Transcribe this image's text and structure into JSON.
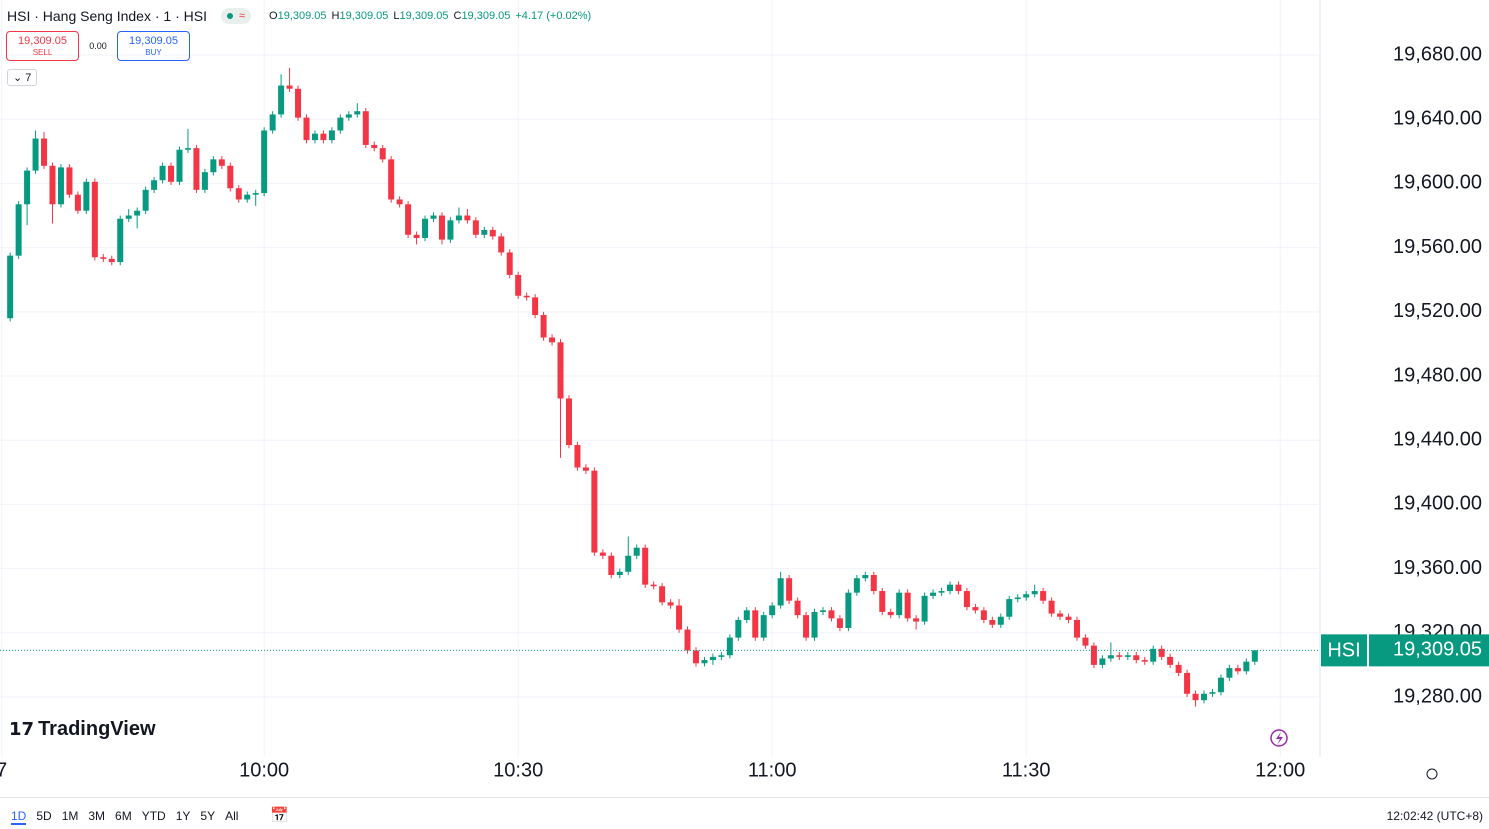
{
  "header": {
    "symbol": "HSI · Hang Seng Index · 1 · HSI",
    "ohlc": [
      {
        "label": "O",
        "value": "19,309.05"
      },
      {
        "label": "H",
        "value": "19,309.05"
      },
      {
        "label": "L",
        "value": "19,309.05"
      },
      {
        "label": "C",
        "value": "19,309.05"
      }
    ],
    "change": "+4.17 (+0.02%)",
    "trade": {
      "sell_price": "19,309.05",
      "sell_label": "SELL",
      "spread": "0.00",
      "buy_price": "19,309.05",
      "buy_label": "BUY"
    },
    "indicators_toggle": "7"
  },
  "watermark": "TradingView",
  "chart_data": {
    "type": "candlestick",
    "series_name": "HSI",
    "up_color": "#089981",
    "down_color": "#f23645",
    "x": [
      570,
      571,
      572,
      573,
      574,
      575,
      576,
      577,
      578,
      579,
      580,
      581,
      582,
      583,
      584,
      585,
      586,
      587,
      588,
      589,
      590,
      591,
      592,
      593,
      594,
      595,
      596,
      597,
      598,
      599,
      600,
      601,
      602,
      603,
      604,
      605,
      606,
      607,
      608,
      609,
      610,
      611,
      612,
      613,
      614,
      615,
      616,
      617,
      618,
      619,
      620,
      621,
      622,
      623,
      624,
      625,
      626,
      627,
      628,
      629,
      630,
      631,
      632,
      633,
      634,
      635,
      636,
      637,
      638,
      639,
      640,
      641,
      642,
      643,
      644,
      645,
      646,
      647,
      648,
      649,
      650,
      651,
      652,
      653,
      654,
      655,
      656,
      657,
      658,
      659,
      660,
      661,
      662,
      663,
      664,
      665,
      666,
      667,
      668,
      669,
      670,
      671,
      672,
      673,
      674,
      675,
      676,
      677,
      678,
      679,
      680,
      681,
      682,
      683,
      684,
      685,
      686,
      687,
      688,
      689,
      690,
      691,
      692,
      693,
      694,
      695,
      696,
      697,
      698,
      699,
      700,
      701,
      702,
      703,
      704,
      705,
      706,
      707,
      708,
      709,
      710,
      711,
      712,
      713,
      714,
      715,
      716,
      717
    ],
    "open": [
      19516,
      19555,
      19587,
      19608,
      19628,
      19611,
      19587,
      19610,
      19593,
      19583,
      19601,
      19554,
      19553,
      19551,
      19578,
      19580,
      19583,
      19596,
      19602,
      19611,
      19601,
      19621,
      19622,
      19596,
      19607,
      19615,
      19611,
      19597,
      19590,
      19593,
      19594,
      19633,
      19643,
      19661,
      19659,
      19641,
      19627,
      19631,
      19627,
      19633,
      19641,
      19643,
      19645,
      19624,
      19622,
      19615,
      19590,
      19587,
      19568,
      19566,
      19578,
      19580,
      19565,
      19577,
      19580,
      19577,
      19568,
      19571,
      19567,
      19557,
      19543,
      19530,
      19529,
      19518,
      19504,
      19501,
      19466,
      19437,
      19423,
      19421,
      19370,
      19368,
      19356,
      19358,
      19368,
      19373,
      19350,
      19349,
      19339,
      19337,
      19322,
      19309,
      19301,
      19303,
      19305,
      19306,
      19317,
      19328,
      19334,
      19317,
      19331,
      19337,
      19354,
      19340,
      19331,
      19317,
      19333,
      19334,
      19329,
      19323,
      19345,
      19354,
      19356,
      19346,
      19333,
      19331,
      19345,
      19329,
      19327,
      19343,
      19345,
      19346,
      19350,
      19346,
      19336,
      19334,
      19328,
      19325,
      19330,
      19341,
      19342,
      19344,
      19346,
      19340,
      19332,
      19330,
      19328,
      19317,
      19312,
      19300,
      19304,
      19306,
      19305,
      19306,
      19303,
      19302,
      19310,
      19305,
      19300,
      19295,
      19282,
      19278,
      19282,
      19283,
      19292,
      19298,
      19296,
      19302
    ],
    "high": [
      19557,
      19589,
      19610,
      19633,
      19632,
      19613,
      19612,
      19612,
      19595,
      19603,
      19603,
      19556,
      19555,
      19580,
      19584,
      19585,
      19598,
      19604,
      19613,
      19613,
      19623,
      19634,
      19624,
      19609,
      19617,
      19617,
      19613,
      19599,
      19595,
      19596,
      19635,
      19645,
      19668,
      19672,
      19661,
      19643,
      19633,
      19633,
      19635,
      19643,
      19645,
      19650,
      19647,
      19626,
      19624,
      19617,
      19592,
      19589,
      19570,
      19580,
      19582,
      19582,
      19579,
      19585,
      19584,
      19579,
      19573,
      19573,
      19569,
      19559,
      19545,
      19532,
      19531,
      19520,
      19506,
      19503,
      19468,
      19439,
      19425,
      19423,
      19372,
      19370,
      19360,
      19380,
      19375,
      19375,
      19352,
      19351,
      19341,
      19341,
      19324,
      19311,
      19305,
      19307,
      19308,
      19319,
      19330,
      19336,
      19336,
      19333,
      19339,
      19358,
      19356,
      19342,
      19333,
      19335,
      19336,
      19336,
      19331,
      19347,
      19356,
      19358,
      19358,
      19348,
      19335,
      19347,
      19347,
      19331,
      19345,
      19347,
      19348,
      19352,
      19352,
      19348,
      19338,
      19336,
      19330,
      19332,
      19343,
      19344,
      19346,
      19350,
      19348,
      19342,
      19334,
      19332,
      19330,
      19319,
      19314,
      19306,
      19314,
      19308,
      19308,
      19308,
      19305,
      19312,
      19312,
      19307,
      19302,
      19297,
      19284,
      19284,
      19285,
      19294,
      19300,
      19300,
      19304,
      19309.05
    ],
    "low": [
      19514,
      19553,
      19574,
      19606,
      19609,
      19575,
      19585,
      19591,
      19581,
      19581,
      19552,
      19551,
      19549,
      19549,
      19576,
      19572,
      19581,
      19594,
      19600,
      19599,
      19599,
      19619,
      19594,
      19594,
      19605,
      19609,
      19595,
      19588,
      19588,
      19586,
      19592,
      19631,
      19641,
      19657,
      19639,
      19625,
      19625,
      19625,
      19625,
      19631,
      19639,
      19641,
      19622,
      19620,
      19613,
      19588,
      19585,
      19566,
      19562,
      19564,
      19576,
      19562,
      19563,
      19575,
      19575,
      19566,
      19566,
      19565,
      19555,
      19541,
      19528,
      19527,
      19516,
      19502,
      19499,
      19429,
      19435,
      19421,
      19419,
      19368,
      19366,
      19354,
      19354,
      19356,
      19366,
      19348,
      19347,
      19337,
      19335,
      19320,
      19307,
      19299,
      19299,
      19300,
      19303,
      19304,
      19315,
      19326,
      19315,
      19315,
      19329,
      19335,
      19338,
      19329,
      19315,
      19315,
      19331,
      19327,
      19321,
      19321,
      19343,
      19352,
      19344,
      19331,
      19329,
      19329,
      19327,
      19322,
      19325,
      19341,
      19343,
      19344,
      19344,
      19334,
      19332,
      19326,
      19323,
      19323,
      19328,
      19339,
      19340,
      19342,
      19338,
      19330,
      19328,
      19326,
      19315,
      19310,
      19298,
      19298,
      19302,
      19303,
      19303,
      19301,
      19300,
      19300,
      19303,
      19298,
      19293,
      19280,
      19274,
      19276,
      19280,
      19281,
      19290,
      19294,
      19294,
      19300
    ],
    "close": [
      19555,
      19587,
      19608,
      19628,
      19611,
      19587,
      19610,
      19593,
      19583,
      19601,
      19554,
      19553,
      19551,
      19578,
      19580,
      19583,
      19596,
      19602,
      19611,
      19601,
      19621,
      19622,
      19596,
      19607,
      19615,
      19611,
      19597,
      19590,
      19593,
      19594,
      19633,
      19643,
      19661,
      19659,
      19641,
      19627,
      19631,
      19627,
      19633,
      19641,
      19643,
      19645,
      19624,
      19622,
      19615,
      19590,
      19587,
      19568,
      19566,
      19578,
      19580,
      19565,
      19577,
      19580,
      19577,
      19568,
      19571,
      19567,
      19557,
      19543,
      19530,
      19529,
      19518,
      19504,
      19501,
      19466,
      19437,
      19423,
      19421,
      19370,
      19368,
      19356,
      19358,
      19368,
      19373,
      19350,
      19349,
      19339,
      19337,
      19322,
      19309,
      19301,
      19303,
      19305,
      19306,
      19317,
      19328,
      19334,
      19317,
      19331,
      19337,
      19354,
      19340,
      19331,
      19317,
      19333,
      19334,
      19329,
      19323,
      19345,
      19354,
      19356,
      19346,
      19333,
      19331,
      19345,
      19329,
      19327,
      19343,
      19345,
      19346,
      19350,
      19346,
      19336,
      19334,
      19328,
      19325,
      19330,
      19341,
      19342,
      19344,
      19346,
      19340,
      19332,
      19330,
      19328,
      19317,
      19312,
      19300,
      19304,
      19306,
      19305,
      19306,
      19303,
      19302,
      19310,
      19305,
      19300,
      19295,
      19282,
      19278,
      19282,
      19283,
      19292,
      19298,
      19296,
      19302,
      19309.05
    ],
    "xlim": [
      568.8,
      724.7
    ],
    "xticks": [
      {
        "value": 569,
        "label": "7"
      },
      {
        "value": 600,
        "label": "10:00"
      },
      {
        "value": 630,
        "label": "10:30"
      },
      {
        "value": 660,
        "label": "11:00"
      },
      {
        "value": 690,
        "label": "11:30"
      },
      {
        "value": 720,
        "label": "12:00"
      }
    ],
    "ylim": [
      19242.6,
      19714.3
    ],
    "yticks": [
      {
        "value": 19280,
        "label": "19,280.00"
      },
      {
        "value": 19320,
        "label": "19,320.00"
      },
      {
        "value": 19360,
        "label": "19,360.00"
      },
      {
        "value": 19400,
        "label": "19,400.00"
      },
      {
        "value": 19440,
        "label": "19,440.00"
      },
      {
        "value": 19480,
        "label": "19,480.00"
      },
      {
        "value": 19520,
        "label": "19,520.00"
      },
      {
        "value": 19560,
        "label": "19,560.00"
      },
      {
        "value": 19600,
        "label": "19,600.00"
      },
      {
        "value": 19640,
        "label": "19,640.00"
      },
      {
        "value": 19680,
        "label": "19,680.00"
      }
    ],
    "grid": true,
    "last_price": {
      "value": 19309.05,
      "label": "19,309.05"
    }
  },
  "toolbar": {
    "ranges": [
      "1D",
      "5D",
      "1M",
      "3M",
      "6M",
      "YTD",
      "1Y",
      "5Y",
      "All"
    ],
    "clock": "12:02:42 (UTC+8)"
  }
}
